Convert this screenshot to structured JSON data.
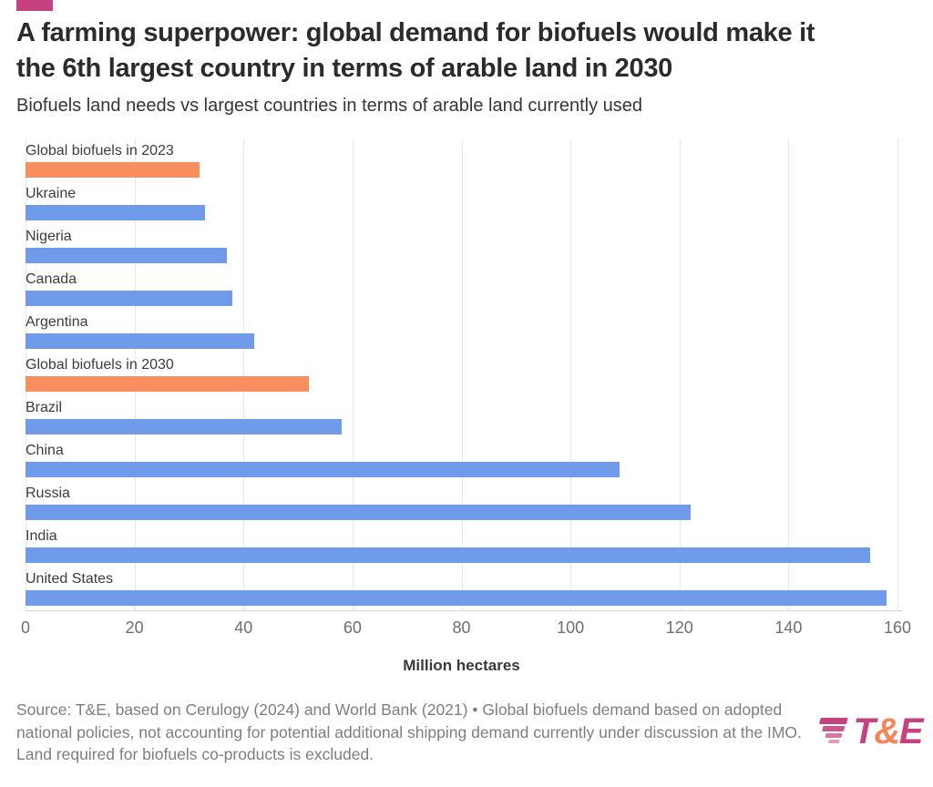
{
  "brand": {
    "accent_color": "#c6417f"
  },
  "header": {
    "title_lines": [
      "A farming superpower: global demand for biofuels would make it",
      "the 6th largest country in terms of arable land in 2030"
    ],
    "subtitle": "Biofuels land needs vs largest countries in terms of arable land currently used"
  },
  "chart_data": {
    "type": "bar",
    "orientation": "horizontal",
    "title": "A farming superpower: global demand for biofuels would make it the 6th largest country in terms of arable land in 2030",
    "subtitle": "Biofuels land needs vs largest countries in terms of arable land currently used",
    "categories": [
      "Global biofuels in 2023",
      "Ukraine",
      "Nigeria",
      "Canada",
      "Argentina",
      "Global biofuels in 2030",
      "Brazil",
      "China",
      "Russia",
      "India",
      "United States"
    ],
    "values": [
      32,
      33,
      37,
      38,
      42,
      52,
      58,
      109,
      122,
      155,
      158
    ],
    "bar_colors": [
      "#f98e5e",
      "#6f9bea",
      "#6f9bea",
      "#6f9bea",
      "#6f9bea",
      "#f98e5e",
      "#6f9bea",
      "#6f9bea",
      "#6f9bea",
      "#6f9bea",
      "#6f9bea"
    ],
    "highlight_color": "#f98e5e",
    "default_color": "#6f9bea",
    "xlabel": "Million hectares",
    "xlim": [
      0,
      160
    ],
    "xticks": [
      0,
      20,
      40,
      60,
      80,
      100,
      120,
      140,
      160
    ],
    "grid": true,
    "legend": "none",
    "unit": "million hectares"
  },
  "footer": {
    "source": "Source: T&E, based on Cerulogy (2024) and World Bank (2021) • Global biofuels demand based on adopted national policies, not accounting for potential additional shipping demand currently under discussion at the IMO. Land required for biofuels co-products is excluded.",
    "logo": {
      "t": "T",
      "amp": "&",
      "e": "E",
      "primary_color": "#c6417f",
      "amp_color": "#f4865c"
    }
  }
}
